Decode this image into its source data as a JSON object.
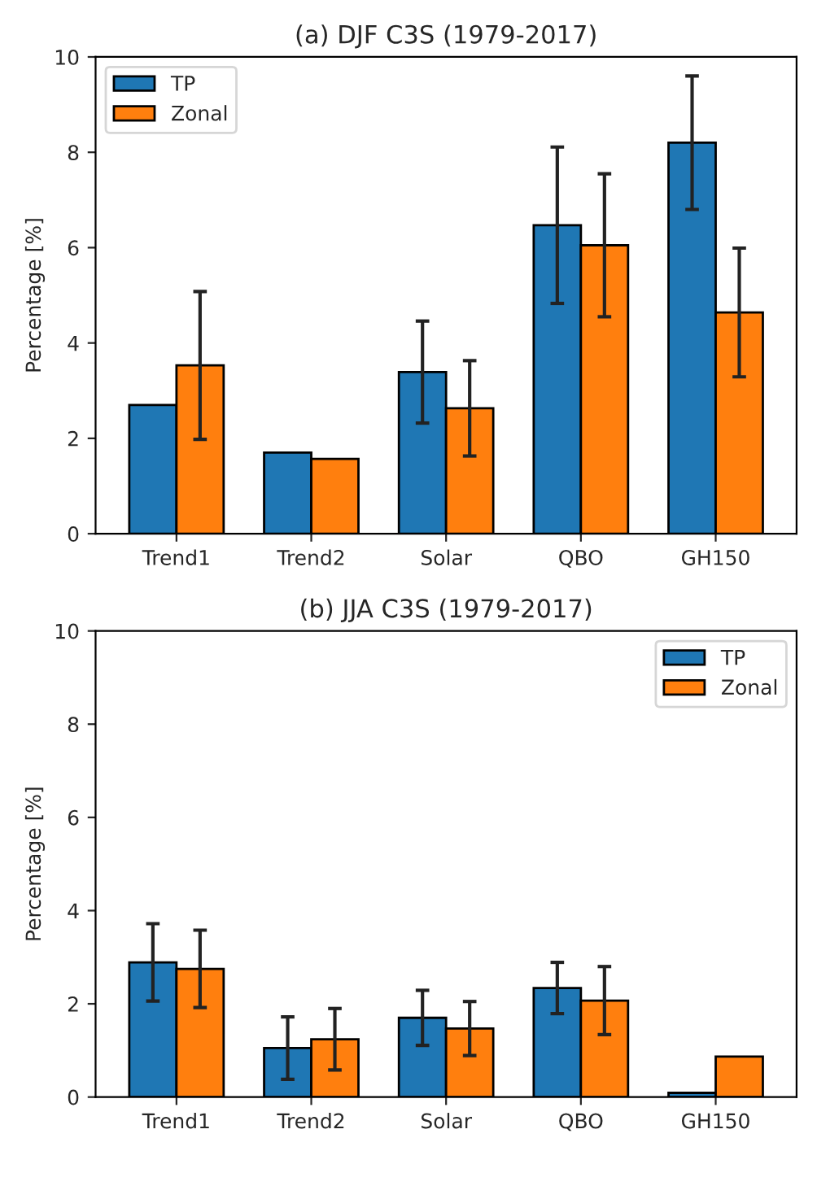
{
  "chart_data": [
    {
      "type": "bar",
      "title": "(a) DJF C3S (1979-2017)",
      "ylabel": "Percentage [%]",
      "categories": [
        "Trend1",
        "Trend2",
        "Solar",
        "QBO",
        "GH150"
      ],
      "ylim": [
        0,
        10
      ],
      "yticks": [
        0,
        2,
        4,
        6,
        8,
        10
      ],
      "grid": false,
      "legend": "top left",
      "series": [
        {
          "name": "TP",
          "color": "#1f77b4",
          "values": [
            2.7,
            1.7,
            3.39,
            6.47,
            8.2
          ],
          "errors": [
            null,
            null,
            1.07,
            1.64,
            1.4
          ]
        },
        {
          "name": "Zonal",
          "color": "#ff7f0e",
          "values": [
            3.53,
            1.57,
            2.63,
            6.05,
            4.64
          ],
          "errors": [
            1.55,
            null,
            1.0,
            1.5,
            1.35
          ]
        }
      ]
    },
    {
      "type": "bar",
      "title": "(b) JJA C3S (1979-2017)",
      "ylabel": "Percentage [%]",
      "categories": [
        "Trend1",
        "Trend2",
        "Solar",
        "QBO",
        "GH150"
      ],
      "ylim": [
        0,
        10
      ],
      "yticks": [
        0,
        2,
        4,
        6,
        8,
        10
      ],
      "grid": false,
      "legend": "top right",
      "series": [
        {
          "name": "TP",
          "color": "#1f77b4",
          "values": [
            2.89,
            1.05,
            1.7,
            2.34,
            0.09
          ],
          "errors": [
            0.83,
            0.67,
            0.59,
            0.55,
            null
          ]
        },
        {
          "name": "Zonal",
          "color": "#ff7f0e",
          "values": [
            2.75,
            1.24,
            1.47,
            2.07,
            0.87
          ],
          "errors": [
            0.83,
            0.66,
            0.58,
            0.73,
            null
          ]
        }
      ]
    }
  ]
}
